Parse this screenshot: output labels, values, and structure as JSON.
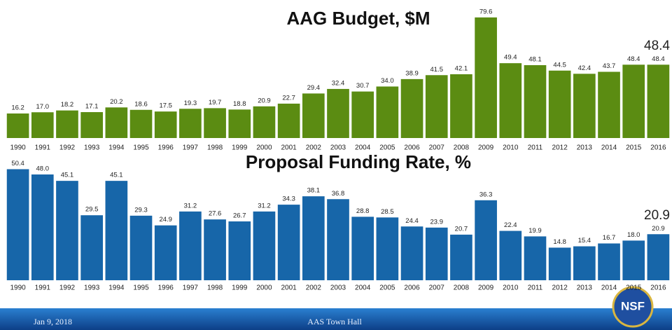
{
  "chart_data": [
    {
      "type": "bar",
      "title": "AAG Budget, $M",
      "categories": [
        "1990",
        "1991",
        "1992",
        "1993",
        "1994",
        "1995",
        "1996",
        "1997",
        "1998",
        "1999",
        "2000",
        "2001",
        "2002",
        "2003",
        "2004",
        "2005",
        "2006",
        "2007",
        "2008",
        "2009",
        "2010",
        "2011",
        "2012",
        "2013",
        "2014",
        "2015",
        "2016"
      ],
      "values": [
        16.2,
        17.0,
        18.2,
        17.1,
        20.2,
        18.6,
        17.5,
        19.3,
        19.7,
        18.8,
        20.9,
        22.7,
        29.4,
        32.4,
        30.7,
        34.0,
        38.9,
        41.5,
        42.1,
        79.6,
        49.4,
        48.1,
        44.5,
        42.4,
        43.7,
        48.4,
        48.4
      ],
      "value_labels": [
        "16.2",
        "17.0",
        "18.2",
        "17.1",
        "20.2",
        "18.6",
        "17.5",
        "19.3",
        "19.7",
        "18.8",
        "20.9",
        "22.7",
        "29.4",
        "32.4",
        "30.7",
        "34.0",
        "38.9",
        "41.5",
        "42.1",
        "79.6",
        "49.4",
        "48.1",
        "44.5",
        "42.4",
        "43.7",
        "48.4",
        "48.4"
      ],
      "annotation": "48.4",
      "color": "#5b8c12",
      "ylim": [
        0,
        80
      ]
    },
    {
      "type": "bar",
      "title": "Proposal Funding Rate, %",
      "categories": [
        "1990",
        "1991",
        "1992",
        "1993",
        "1994",
        "1995",
        "1996",
        "1997",
        "1998",
        "1999",
        "2000",
        "2001",
        "2002",
        "2003",
        "2004",
        "2005",
        "2006",
        "2007",
        "2008",
        "2009",
        "2010",
        "2011",
        "2012",
        "2013",
        "2014",
        "2015",
        "2016"
      ],
      "values": [
        50.4,
        48.0,
        45.1,
        29.5,
        45.1,
        29.3,
        24.9,
        31.2,
        27.6,
        26.7,
        31.2,
        34.3,
        38.1,
        36.8,
        28.8,
        28.5,
        24.4,
        23.9,
        20.7,
        36.3,
        22.4,
        19.9,
        14.8,
        15.4,
        16.7,
        18.0,
        20.9
      ],
      "value_labels": [
        "50.4",
        "48.0",
        "45.1",
        "29.5",
        "45.1",
        "29.3",
        "24.9",
        "31.2",
        "27.6",
        "26.7",
        "31.2",
        "34.3",
        "38.1",
        "36.8",
        "28.8",
        "28.5",
        "24.4",
        "23.9",
        "20.7",
        "36.3",
        "22.4",
        "19.9",
        "14.8",
        "15.4",
        "16.7",
        "18.0",
        "20.9"
      ],
      "annotation": "20.9",
      "color": "#1766a9",
      "ylim": [
        0,
        55
      ]
    }
  ],
  "footer": {
    "date": "Jan 9, 2018",
    "event": "AAS Town Hall",
    "logo": "NSF"
  }
}
